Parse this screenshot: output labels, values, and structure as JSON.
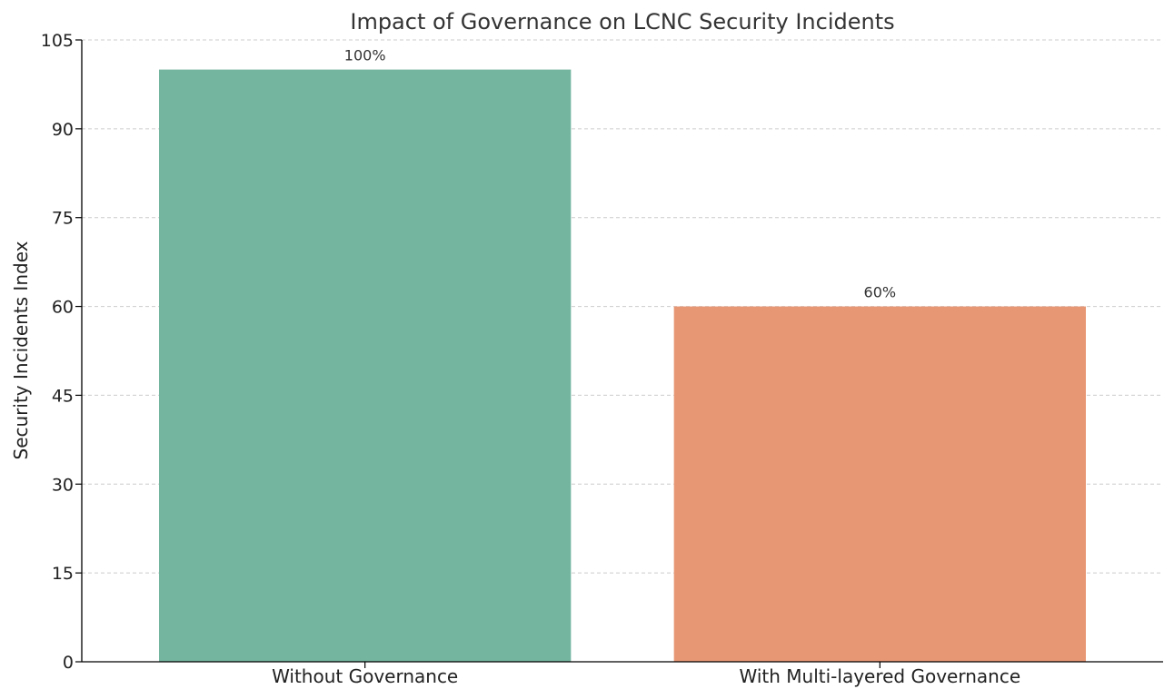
{
  "chart_data": {
    "type": "bar",
    "title": "Impact of Governance on LCNC Security Incidents",
    "xlabel": "",
    "ylabel": "Security Incidents Index",
    "categories": [
      "Without Governance",
      "With Multi-layered Governance"
    ],
    "values": [
      100,
      60
    ],
    "value_labels": [
      "100%",
      "60%"
    ],
    "colors": [
      "#74b5a0",
      "#e89775"
    ],
    "ylim": [
      0,
      105
    ],
    "yticks": [
      0,
      15,
      30,
      45,
      60,
      75,
      90,
      105
    ],
    "grid": true
  }
}
